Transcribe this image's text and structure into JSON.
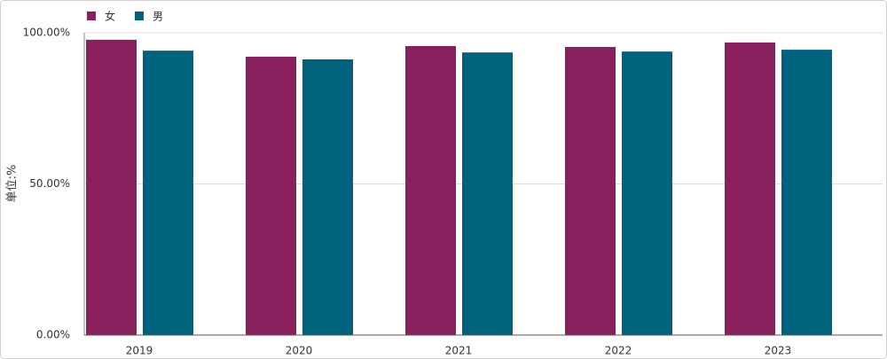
{
  "chart_data": {
    "type": "bar",
    "y_axis_label": "单位:%",
    "categories": [
      "2019",
      "2020",
      "2021",
      "2022",
      "2023"
    ],
    "series": [
      {
        "name": "女",
        "color": "#8a1f5d",
        "values": [
          97.7,
          92.1,
          95.6,
          95.3,
          96.8
        ]
      },
      {
        "name": "男",
        "color": "#00637e",
        "values": [
          94.1,
          91.2,
          93.5,
          93.8,
          94.4
        ]
      }
    ],
    "ylim": [
      0,
      100
    ],
    "yticks": [
      {
        "value": 0,
        "label": "0.00%"
      },
      {
        "value": 50,
        "label": "50.00%"
      },
      {
        "value": 100,
        "label": "100.00%"
      }
    ],
    "grid": true
  }
}
